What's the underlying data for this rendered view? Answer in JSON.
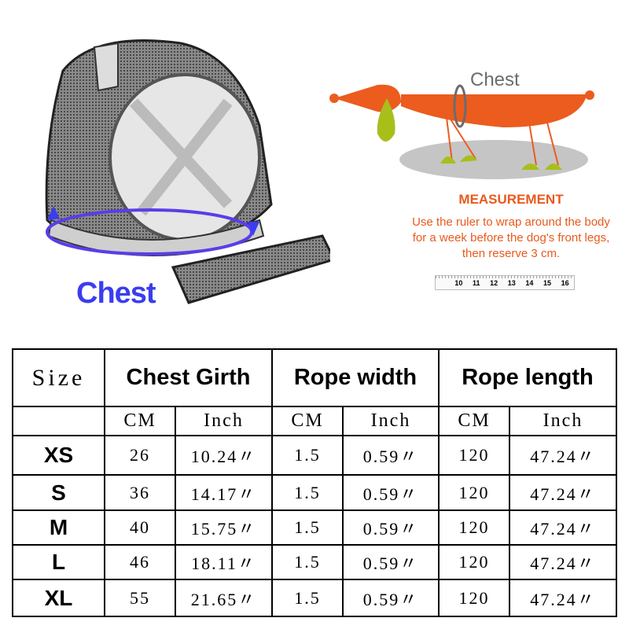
{
  "illustration": {
    "harness_label": "Chest",
    "dog_label": "Chest",
    "ruler_ticks": [
      "10",
      "11",
      "12",
      "13",
      "14",
      "15",
      "16"
    ]
  },
  "measurement": {
    "title": "MEASUREMENT",
    "text": "Use the ruler to wrap around the body for a week before the dog's front legs, then reserve 3 cm."
  },
  "colors": {
    "accent": "#e85a1c",
    "chest_label": "#3a3df0",
    "dog_body": "#eb5c1e",
    "dog_ear": "#a8bf1a"
  },
  "table": {
    "size_header": "Size",
    "group_headers": [
      "Chest Girth",
      "Rope width",
      "Rope length"
    ],
    "sub_headers": [
      "CM",
      "Inch",
      "CM",
      "Inch",
      "CM",
      "Inch"
    ],
    "rows": [
      {
        "size": "XS",
        "values": [
          "26",
          "10.24〃",
          "1.5",
          "0.59〃",
          "120",
          "47.24〃"
        ]
      },
      {
        "size": "S",
        "values": [
          "36",
          "14.17〃",
          "1.5",
          "0.59〃",
          "120",
          "47.24〃"
        ]
      },
      {
        "size": "M",
        "values": [
          "40",
          "15.75〃",
          "1.5",
          "0.59〃",
          "120",
          "47.24〃"
        ]
      },
      {
        "size": "L",
        "values": [
          "46",
          "18.11〃",
          "1.5",
          "0.59〃",
          "120",
          "47.24〃"
        ]
      },
      {
        "size": "XL",
        "values": [
          "55",
          "21.65〃",
          "1.5",
          "0.59〃",
          "120",
          "47.24〃"
        ]
      }
    ]
  }
}
